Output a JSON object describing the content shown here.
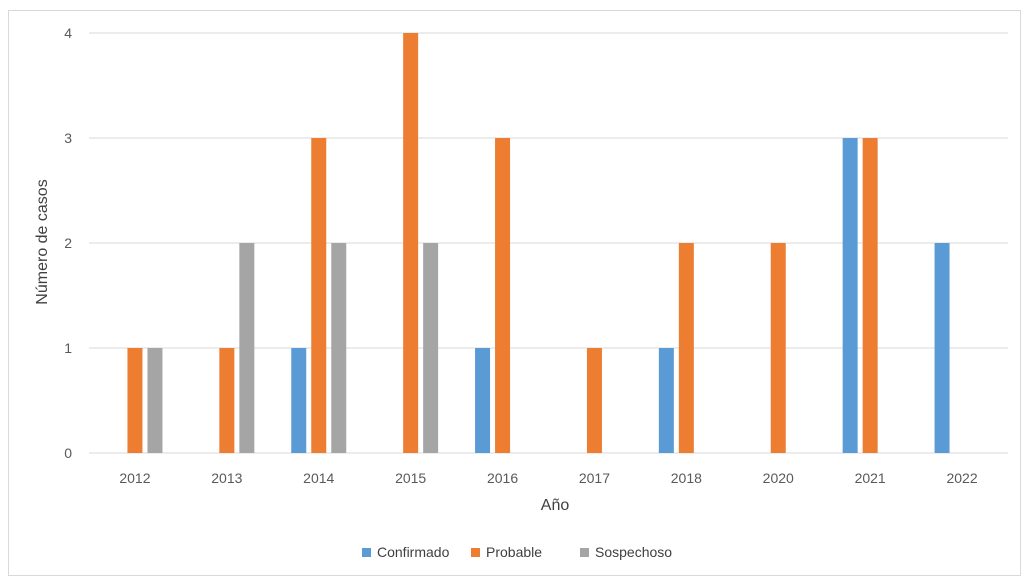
{
  "chart_data": {
    "type": "bar",
    "title": "",
    "xlabel": "Año",
    "ylabel": "Número de casos",
    "categories": [
      "2012",
      "2013",
      "2014",
      "2015",
      "2016",
      "2017",
      "2018",
      "2020",
      "2021",
      "2022"
    ],
    "series": [
      {
        "name": "Confirmado",
        "color": "#5b9bd5",
        "values": [
          0,
          0,
          1,
          0,
          1,
          0,
          1,
          0,
          3,
          2
        ]
      },
      {
        "name": "Probable",
        "color": "#ed7d31",
        "values": [
          1,
          1,
          3,
          4,
          3,
          1,
          2,
          2,
          3,
          0
        ]
      },
      {
        "name": "Sospechoso",
        "color": "#a5a5a5",
        "values": [
          1,
          2,
          2,
          2,
          0,
          0,
          0,
          0,
          0,
          0
        ]
      }
    ],
    "yticks": [
      "0",
      "1",
      "2",
      "3",
      "4"
    ],
    "ylim": [
      0,
      4
    ],
    "grid": true,
    "legend_position": "bottom"
  }
}
